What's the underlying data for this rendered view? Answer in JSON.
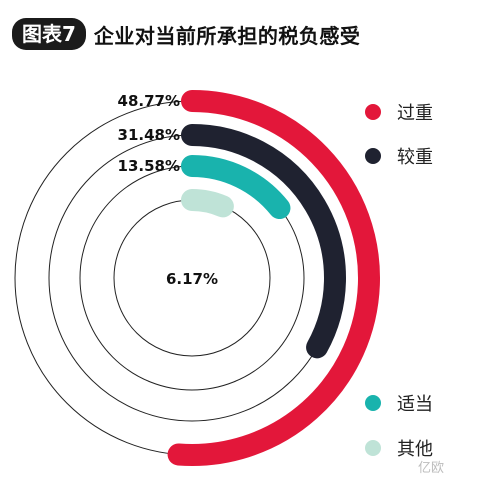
{
  "header": {
    "badge": "图表7",
    "title": "企业对当前所承担的税负感受"
  },
  "chart_data": {
    "type": "radial-bar",
    "title": "企业对当前所承担的税负感受",
    "series": [
      {
        "name": "过重",
        "value": 48.77,
        "label": "48.77%",
        "color": "#e3173a"
      },
      {
        "name": "较重",
        "value": 31.48,
        "label": "31.48%",
        "color": "#1f2230"
      },
      {
        "name": "适当",
        "value": 13.58,
        "label": "13.58%",
        "color": "#19b3ad"
      },
      {
        "name": "其他",
        "value": 6.17,
        "label": "6.17%",
        "color": "#bfe3d7"
      }
    ],
    "legend": "right",
    "max_value": 100
  },
  "watermark": {
    "text": "亿欧"
  }
}
